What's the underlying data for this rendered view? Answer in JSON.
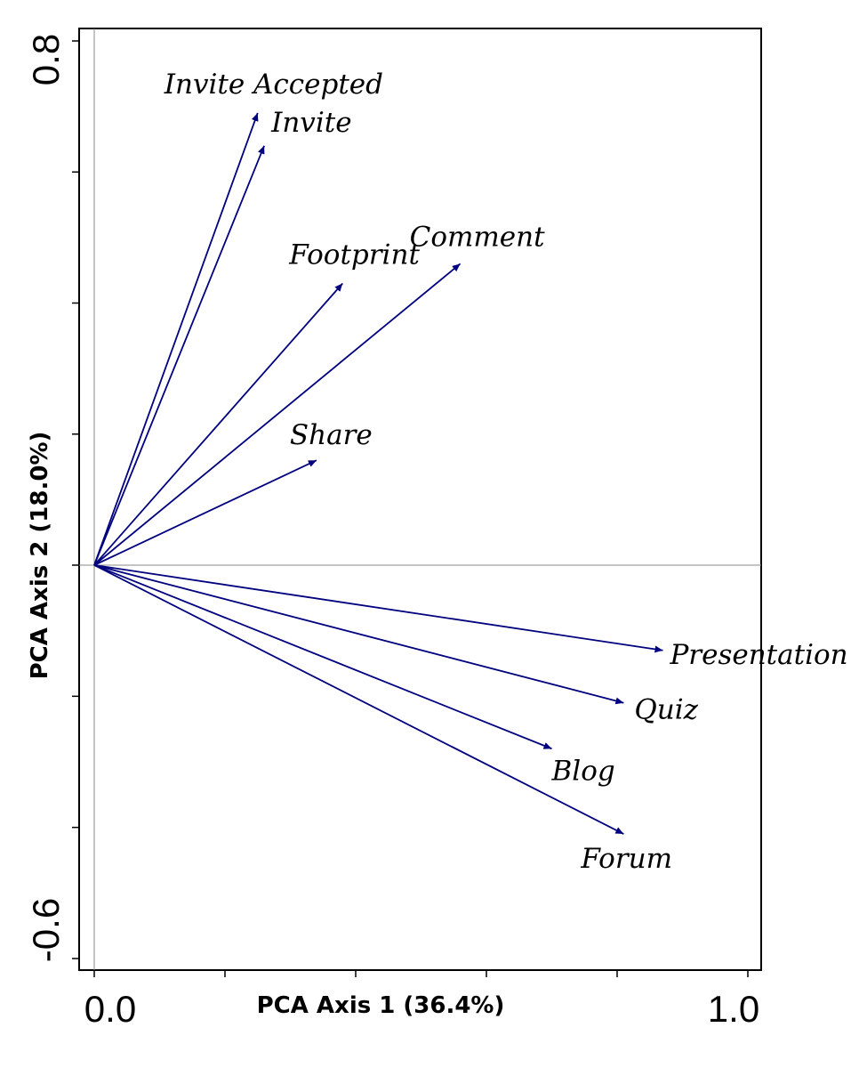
{
  "chart_data": {
    "type": "biplot",
    "xlabel": "PCA Axis 1 (36.4%)",
    "ylabel": "PCA Axis 2 (18.0%)",
    "xlim": [
      0.0,
      1.0
    ],
    "ylim": [
      -0.6,
      0.8
    ],
    "x_tick_labels": [
      {
        "value": 0.0,
        "label": "0.0"
      },
      {
        "value": 1.0,
        "label": "1.0"
      }
    ],
    "y_tick_labels": [
      {
        "value": 0.8,
        "label": "0.8"
      },
      {
        "value": -0.6,
        "label": "-0.6"
      }
    ],
    "x_ticks": [
      0.0,
      0.2,
      0.4,
      0.6,
      0.8,
      1.0
    ],
    "y_ticks": [
      -0.6,
      -0.4,
      -0.2,
      0.0,
      0.2,
      0.4,
      0.6,
      0.8
    ],
    "origin_lines": true,
    "arrow_color": "#00007f",
    "vectors": [
      {
        "name": "Invite Accepted",
        "x": 0.25,
        "y": 0.69
      },
      {
        "name": "Invite",
        "x": 0.26,
        "y": 0.64
      },
      {
        "name": "Footprint",
        "x": 0.38,
        "y": 0.43
      },
      {
        "name": "Comment",
        "x": 0.56,
        "y": 0.46
      },
      {
        "name": "Share",
        "x": 0.34,
        "y": 0.16
      },
      {
        "name": "Presentation",
        "x": 0.87,
        "y": -0.13
      },
      {
        "name": "Quiz",
        "x": 0.81,
        "y": -0.21
      },
      {
        "name": "Blog",
        "x": 0.7,
        "y": -0.28
      },
      {
        "name": "Forum",
        "x": 0.81,
        "y": -0.41
      }
    ]
  }
}
